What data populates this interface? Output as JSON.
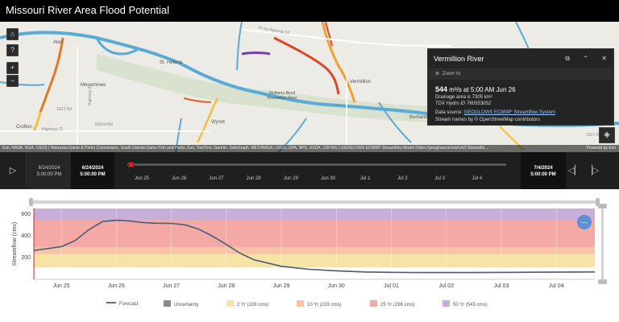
{
  "header": {
    "title": "Missouri River Area Flood Potential"
  },
  "map": {
    "places": [
      "Aten",
      "Menominee",
      "St. Helena",
      "Vermillion",
      "Burbank",
      "Wynot",
      "Crofton",
      "Mulberry Bend Recreation River"
    ],
    "roads": [
      "W Ag Highway 50",
      "Highway 12",
      "Highway 81",
      "Highway 15",
      "1522 Rd",
      "1526 Rd",
      "892nd Rd",
      "890th Rd",
      "1527 Rd"
    ],
    "controls": {
      "home": "⌂",
      "help": "?",
      "zoom_in": "+",
      "zoom_out": "−",
      "layers": "◈"
    },
    "attribution": "Esri, NASA, NGA, USGS | Nebraska Game & Parks Commission, South Dakota Game Fish and Parks, Esri, TomTom, Garmin, SafeGraph, METI/NASA, USGS, EPA, NPS, USDA, USFWS | GEOGLOWS ECMWF Streamflow Model (https://geoglows.ecmwf.int/) Streamflo...",
    "powered_by": "Powered by Esri"
  },
  "popup": {
    "title": "Vermillion River",
    "icons": {
      "dock": "⧉",
      "collapse": "⌃",
      "close": "✕"
    },
    "zoom_label": "Zoom to",
    "flow_value": "544",
    "flow_unit": "m³/s at 5:00 AM Jun 26",
    "drainage": "Drainage area is 7305 km²",
    "tdx": "TDX Hydro ID 760553052",
    "source_label": "Data source:",
    "source_link": "GEOGLOWS ECMWF Streamflow System",
    "stream_names": "Stream names by © OpenStreetMap contributors"
  },
  "timeline": {
    "play": "▷",
    "start_date": "6/24/2024",
    "start_time": "5:00:00 PM",
    "current_date": "6/24/2024",
    "current_time": "5:00:00 PM",
    "end_date": "7/4/2024",
    "end_time": "5:00:00 PM",
    "labels": [
      "Jun 25",
      "Jun 26",
      "Jun 27",
      "Jun 28",
      "Jun 29",
      "Jun 30",
      "Jul 1",
      "Jul 2",
      "Jul 3",
      "Jul 4"
    ],
    "prev": "◁▏",
    "next": "▕▷"
  },
  "chart_data": {
    "type": "area",
    "ylabel": "Streamflow (cms)",
    "ylim": [
      0,
      650
    ],
    "yticks": [
      200,
      400,
      600
    ],
    "xlim": [
      0,
      10.2
    ],
    "categories": [
      "Jun 25",
      "Jun 26",
      "Jun 27",
      "Jun 28",
      "Jun 29",
      "Jun 30",
      "Jul 01",
      "Jul 02",
      "Jul 03",
      "Jul 04"
    ],
    "bands": [
      {
        "name": "2 Yr (108 cms)",
        "from": 108,
        "to": 233,
        "color": "#f6e4a6"
      },
      {
        "name": "10 Yr (233 cms)",
        "from": 233,
        "to": 296,
        "color": "#f5c4a4"
      },
      {
        "name": "25 Yr (296 cms)",
        "from": 296,
        "to": 543,
        "color": "#f4a9a4"
      },
      {
        "name": "50 Yr (543 cms)",
        "from": 543,
        "to": 650,
        "color": "#c9aed8"
      }
    ],
    "series": [
      {
        "name": "Forecast",
        "x": [
          0,
          0.25,
          0.5,
          0.75,
          1.0,
          1.25,
          1.5,
          1.75,
          2.0,
          2.25,
          2.5,
          2.75,
          3.0,
          3.25,
          3.5,
          3.75,
          4.0,
          4.5,
          5.0,
          5.5,
          6.0,
          6.5,
          7.0,
          8.0,
          9.0,
          10.2
        ],
        "y": [
          265,
          282,
          300,
          355,
          455,
          530,
          542,
          535,
          520,
          515,
          513,
          500,
          460,
          395,
          320,
          240,
          180,
          120,
          92,
          78,
          68,
          64,
          62,
          62,
          65,
          68
        ]
      }
    ],
    "uncertainty_label": "Uncertainty",
    "collapse_icon": "—"
  }
}
